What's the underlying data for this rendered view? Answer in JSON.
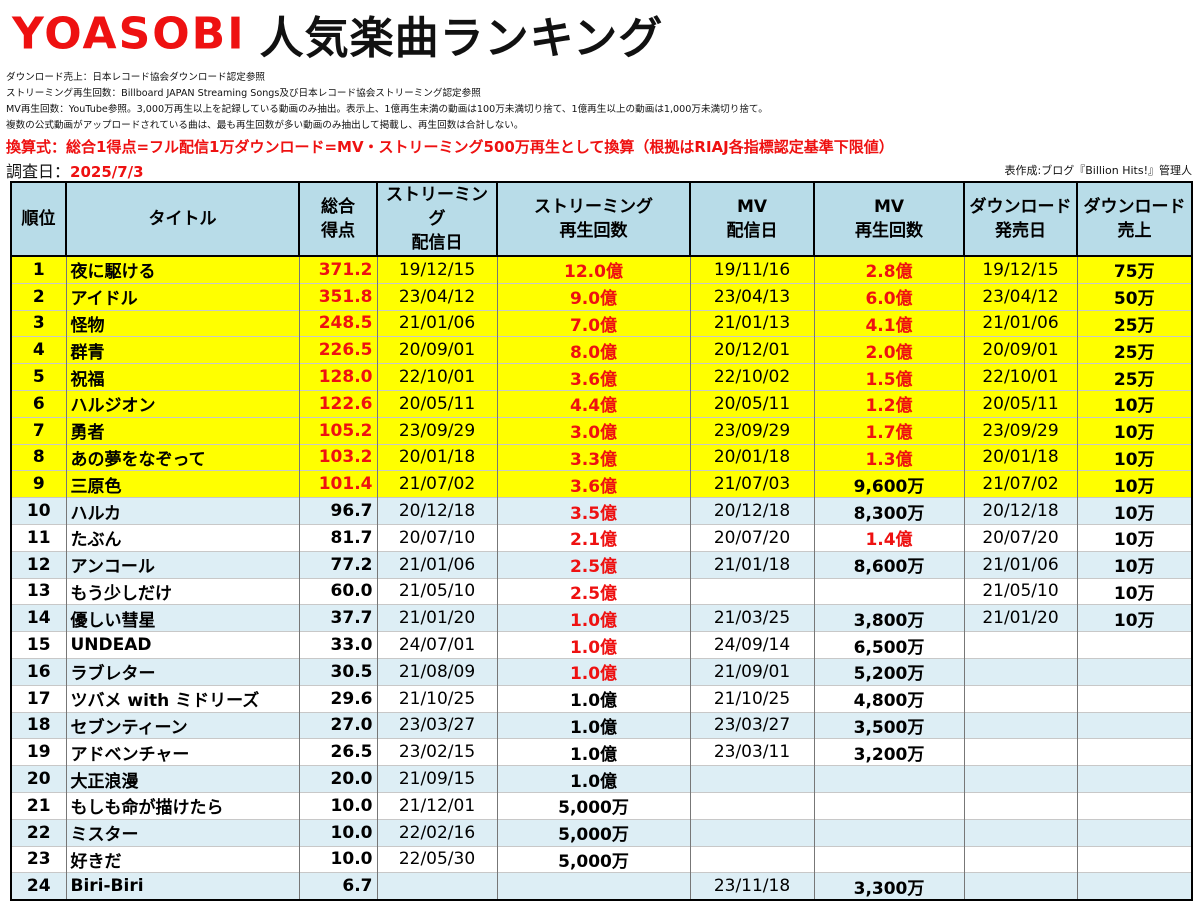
{
  "header": {
    "artist": "YOASOBI",
    "title": "人気楽曲ランキング",
    "notes": [
      "ダウンロード売上：日本レコード協会ダウンロード認定参照",
      "ストリーミング再生回数：Billboard JAPAN Streaming Songs及び日本レコード協会ストリーミング認定参照",
      "MV再生回数：YouTube参照。3,000万再生以上を記録している動画のみ抽出。表示上、1億再生未満の動画は100万未満切り捨て、1億再生以上の動画は1,000万未満切り捨て。",
      "複数の公式動画がアップロードされている曲は、最も再生回数が多い動画のみ抽出して掲載し、再生回数は合計しない。"
    ],
    "conversion": "換算式：総合1得点=フル配信1万ダウンロード=MV・ストリーミング500万再生として換算（根拠はRIAJ各指標認定基準下限値）",
    "date_label": "調査日：",
    "date_value": "2025/7/3",
    "author": "表作成:ブログ『Billion Hits!』管理人"
  },
  "columns": {
    "rank": "順位",
    "title": "タイトル",
    "score_1": "総合",
    "score_2": "得点",
    "st_date_1": "ストリーミング",
    "st_date_2": "配信日",
    "st_plays_1": "ストリーミング",
    "st_plays_2": "再生回数",
    "mv_date_1": "MV",
    "mv_date_2": "配信日",
    "mv_plays_1": "MV",
    "mv_plays_2": "再生回数",
    "dl_date_1": "ダウンロード",
    "dl_date_2": "発売日",
    "dl_sales_1": "ダウンロード",
    "dl_sales_2": "売上"
  },
  "rows": [
    {
      "rank": "1",
      "title": "夜に駆ける",
      "score": "371.2",
      "st_date": "19/12/15",
      "st_plays": "12.0億",
      "mv_date": "19/11/16",
      "mv_plays": "2.8億",
      "dl_date": "19/12/15",
      "dl_sales": "75万",
      "highlight": true,
      "score_red": true,
      "st_red": true,
      "mv_red": true
    },
    {
      "rank": "2",
      "title": "アイドル",
      "score": "351.8",
      "st_date": "23/04/12",
      "st_plays": "9.0億",
      "mv_date": "23/04/13",
      "mv_plays": "6.0億",
      "dl_date": "23/04/12",
      "dl_sales": "50万",
      "highlight": true,
      "score_red": true,
      "st_red": true,
      "mv_red": true
    },
    {
      "rank": "3",
      "title": "怪物",
      "score": "248.5",
      "st_date": "21/01/06",
      "st_plays": "7.0億",
      "mv_date": "21/01/13",
      "mv_plays": "4.1億",
      "dl_date": "21/01/06",
      "dl_sales": "25万",
      "highlight": true,
      "score_red": true,
      "st_red": true,
      "mv_red": true
    },
    {
      "rank": "4",
      "title": "群青",
      "score": "226.5",
      "st_date": "20/09/01",
      "st_plays": "8.0億",
      "mv_date": "20/12/01",
      "mv_plays": "2.0億",
      "dl_date": "20/09/01",
      "dl_sales": "25万",
      "highlight": true,
      "score_red": true,
      "st_red": true,
      "mv_red": true
    },
    {
      "rank": "5",
      "title": "祝福",
      "score": "128.0",
      "st_date": "22/10/01",
      "st_plays": "3.6億",
      "mv_date": "22/10/02",
      "mv_plays": "1.5億",
      "dl_date": "22/10/01",
      "dl_sales": "25万",
      "highlight": true,
      "score_red": true,
      "st_red": true,
      "mv_red": true
    },
    {
      "rank": "6",
      "title": "ハルジオン",
      "score": "122.6",
      "st_date": "20/05/11",
      "st_plays": "4.4億",
      "mv_date": "20/05/11",
      "mv_plays": "1.2億",
      "dl_date": "20/05/11",
      "dl_sales": "10万",
      "highlight": true,
      "score_red": true,
      "st_red": true,
      "mv_red": true
    },
    {
      "rank": "7",
      "title": "勇者",
      "score": "105.2",
      "st_date": "23/09/29",
      "st_plays": "3.0億",
      "mv_date": "23/09/29",
      "mv_plays": "1.7億",
      "dl_date": "23/09/29",
      "dl_sales": "10万",
      "highlight": true,
      "score_red": true,
      "st_red": true,
      "mv_red": true
    },
    {
      "rank": "8",
      "title": "あの夢をなぞって",
      "score": "103.2",
      "st_date": "20/01/18",
      "st_plays": "3.3億",
      "mv_date": "20/01/18",
      "mv_plays": "1.3億",
      "dl_date": "20/01/18",
      "dl_sales": "10万",
      "highlight": true,
      "score_red": true,
      "st_red": true,
      "mv_red": true
    },
    {
      "rank": "9",
      "title": "三原色",
      "score": "101.4",
      "st_date": "21/07/02",
      "st_plays": "3.6億",
      "mv_date": "21/07/03",
      "mv_plays": "9,600万",
      "dl_date": "21/07/02",
      "dl_sales": "10万",
      "highlight": true,
      "score_red": true,
      "st_red": true,
      "mv_red": false
    },
    {
      "rank": "10",
      "title": "ハルカ",
      "score": "96.7",
      "st_date": "20/12/18",
      "st_plays": "3.5億",
      "mv_date": "20/12/18",
      "mv_plays": "8,300万",
      "dl_date": "20/12/18",
      "dl_sales": "10万",
      "highlight": false,
      "score_red": false,
      "st_red": true,
      "mv_red": false
    },
    {
      "rank": "11",
      "title": "たぶん",
      "score": "81.7",
      "st_date": "20/07/10",
      "st_plays": "2.1億",
      "mv_date": "20/07/20",
      "mv_plays": "1.4億",
      "dl_date": "20/07/20",
      "dl_sales": "10万",
      "highlight": false,
      "score_red": false,
      "st_red": true,
      "mv_red": true
    },
    {
      "rank": "12",
      "title": "アンコール",
      "score": "77.2",
      "st_date": "21/01/06",
      "st_plays": "2.5億",
      "mv_date": "21/01/18",
      "mv_plays": "8,600万",
      "dl_date": "21/01/06",
      "dl_sales": "10万",
      "highlight": false,
      "score_red": false,
      "st_red": true,
      "mv_red": false
    },
    {
      "rank": "13",
      "title": "もう少しだけ",
      "score": "60.0",
      "st_date": "21/05/10",
      "st_plays": "2.5億",
      "mv_date": "",
      "mv_plays": "",
      "dl_date": "21/05/10",
      "dl_sales": "10万",
      "highlight": false,
      "score_red": false,
      "st_red": true,
      "mv_red": false
    },
    {
      "rank": "14",
      "title": "優しい彗星",
      "score": "37.7",
      "st_date": "21/01/20",
      "st_plays": "1.0億",
      "mv_date": "21/03/25",
      "mv_plays": "3,800万",
      "dl_date": "21/01/20",
      "dl_sales": "10万",
      "highlight": false,
      "score_red": false,
      "st_red": true,
      "mv_red": false
    },
    {
      "rank": "15",
      "title": "UNDEAD",
      "score": "33.0",
      "st_date": "24/07/01",
      "st_plays": "1.0億",
      "mv_date": "24/09/14",
      "mv_plays": "6,500万",
      "dl_date": "",
      "dl_sales": "",
      "highlight": false,
      "score_red": false,
      "st_red": true,
      "mv_red": false
    },
    {
      "rank": "16",
      "title": "ラブレター",
      "score": "30.5",
      "st_date": "21/08/09",
      "st_plays": "1.0億",
      "mv_date": "21/09/01",
      "mv_plays": "5,200万",
      "dl_date": "",
      "dl_sales": "",
      "highlight": false,
      "score_red": false,
      "st_red": true,
      "mv_red": false
    },
    {
      "rank": "17",
      "title": "ツバメ with ミドリーズ",
      "score": "29.6",
      "st_date": "21/10/25",
      "st_plays": "1.0億",
      "mv_date": "21/10/25",
      "mv_plays": "4,800万",
      "dl_date": "",
      "dl_sales": "",
      "highlight": false,
      "score_red": false,
      "st_red": false,
      "mv_red": false
    },
    {
      "rank": "18",
      "title": "セブンティーン",
      "score": "27.0",
      "st_date": "23/03/27",
      "st_plays": "1.0億",
      "mv_date": "23/03/27",
      "mv_plays": "3,500万",
      "dl_date": "",
      "dl_sales": "",
      "highlight": false,
      "score_red": false,
      "st_red": false,
      "mv_red": false
    },
    {
      "rank": "19",
      "title": "アドベンチャー",
      "score": "26.5",
      "st_date": "23/02/15",
      "st_plays": "1.0億",
      "mv_date": "23/03/11",
      "mv_plays": "3,200万",
      "dl_date": "",
      "dl_sales": "",
      "highlight": false,
      "score_red": false,
      "st_red": false,
      "mv_red": false
    },
    {
      "rank": "20",
      "title": "大正浪漫",
      "score": "20.0",
      "st_date": "21/09/15",
      "st_plays": "1.0億",
      "mv_date": "",
      "mv_plays": "",
      "dl_date": "",
      "dl_sales": "",
      "highlight": false,
      "score_red": false,
      "st_red": false,
      "mv_red": false
    },
    {
      "rank": "21",
      "title": "もしも命が描けたら",
      "score": "10.0",
      "st_date": "21/12/01",
      "st_plays": "5,000万",
      "mv_date": "",
      "mv_plays": "",
      "dl_date": "",
      "dl_sales": "",
      "highlight": false,
      "score_red": false,
      "st_red": false,
      "mv_red": false
    },
    {
      "rank": "22",
      "title": "ミスター",
      "score": "10.0",
      "st_date": "22/02/16",
      "st_plays": "5,000万",
      "mv_date": "",
      "mv_plays": "",
      "dl_date": "",
      "dl_sales": "",
      "highlight": false,
      "score_red": false,
      "st_red": false,
      "mv_red": false
    },
    {
      "rank": "23",
      "title": "好きだ",
      "score": "10.0",
      "st_date": "22/05/30",
      "st_plays": "5,000万",
      "mv_date": "",
      "mv_plays": "",
      "dl_date": "",
      "dl_sales": "",
      "highlight": false,
      "score_red": false,
      "st_red": false,
      "mv_red": false
    },
    {
      "rank": "24",
      "title": "Biri-Biri",
      "score": "6.7",
      "st_date": "",
      "st_plays": "",
      "mv_date": "23/11/18",
      "mv_plays": "3,300万",
      "dl_date": "",
      "dl_sales": "",
      "highlight": false,
      "score_red": false,
      "st_red": false,
      "mv_red": false
    }
  ],
  "colors": {
    "highlight": "#ffff00",
    "stripe": "#ddeef5",
    "header_bg": "#b8dce8",
    "accent_red": "#ee1111"
  }
}
